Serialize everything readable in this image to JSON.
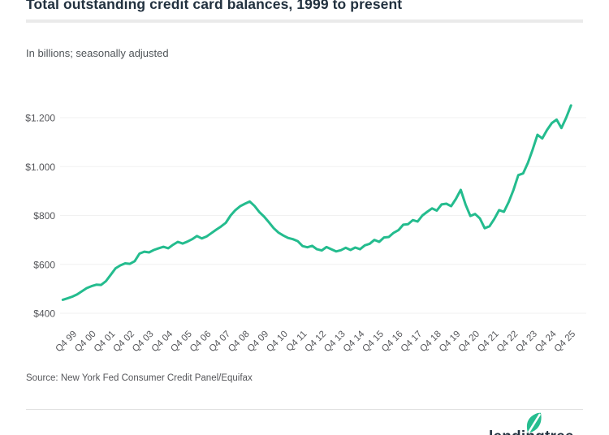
{
  "header": {
    "title": "Total outstanding credit card balances, 1999 to present",
    "subtitle": "In billions; seasonally adjusted"
  },
  "footer": {
    "source": "Source: New York Fed Consumer Credit Panel/Equifax",
    "brand_wordmark": "lendingtree",
    "brand_icon": "leaf-icon"
  },
  "colors": {
    "line": "#24bc8e",
    "title_text": "#22313f",
    "body_text": "#55565a",
    "gridline": "#f1f1f1",
    "title_rule": "#eaeaea",
    "divider": "#e2e2e2",
    "leaf": "#26bd8f"
  },
  "chart_data": {
    "type": "line",
    "title": "Total outstanding credit card balances, 1999 to present",
    "ylabel": "In billions; seasonally adjusted",
    "xlabel": "",
    "legend": "none",
    "grid": "horizontal",
    "frequency": "quarterly",
    "x_start": "1999 Q1",
    "x_end": "2025 Q3",
    "ylim": [
      400,
      1280
    ],
    "y_ticks": [
      400,
      600,
      800,
      1000,
      1200
    ],
    "y_tick_labels": [
      "$400",
      "$600",
      "$800",
      "$1.000",
      "$1.200"
    ],
    "x_tick_labels": [
      "Q4 99",
      "Q4 00",
      "Q4 01",
      "Q4 02",
      "Q4 03",
      "Q4 04",
      "Q4 05",
      "Q4 06",
      "Q4 07",
      "Q4 08",
      "Q4 09",
      "Q4 10",
      "Q4 11",
      "Q4 12",
      "Q4 13",
      "Q4 14",
      "Q4 15",
      "Q4 16",
      "Q4 17",
      "Q4 18",
      "Q4 19",
      "Q4 20",
      "Q4 21",
      "Q4 22",
      "Q4 23",
      "Q4 24",
      "Q4 25"
    ],
    "x_tick_first_point_index": 3,
    "x_tick_every_n_points": 4,
    "values": [
      455,
      461,
      468,
      477,
      490,
      503,
      511,
      517,
      516,
      531,
      557,
      584,
      596,
      604,
      602,
      613,
      644,
      652,
      649,
      659,
      666,
      672,
      666,
      680,
      692,
      685,
      693,
      703,
      716,
      706,
      714,
      728,
      742,
      755,
      770,
      800,
      822,
      838,
      848,
      857,
      839,
      814,
      795,
      772,
      748,
      730,
      718,
      708,
      703,
      695,
      675,
      670,
      676,
      662,
      657,
      671,
      662,
      653,
      658,
      668,
      659,
      669,
      662,
      678,
      684,
      700,
      692,
      710,
      712,
      729,
      740,
      762,
      764,
      781,
      775,
      800,
      815,
      829,
      820,
      845,
      848,
      838,
      868,
      905,
      845,
      798,
      806,
      788,
      748,
      756,
      786,
      822,
      815,
      855,
      905,
      965,
      972,
      1015,
      1070,
      1130,
      1115,
      1150,
      1178,
      1192,
      1158,
      1200,
      1250
    ]
  }
}
